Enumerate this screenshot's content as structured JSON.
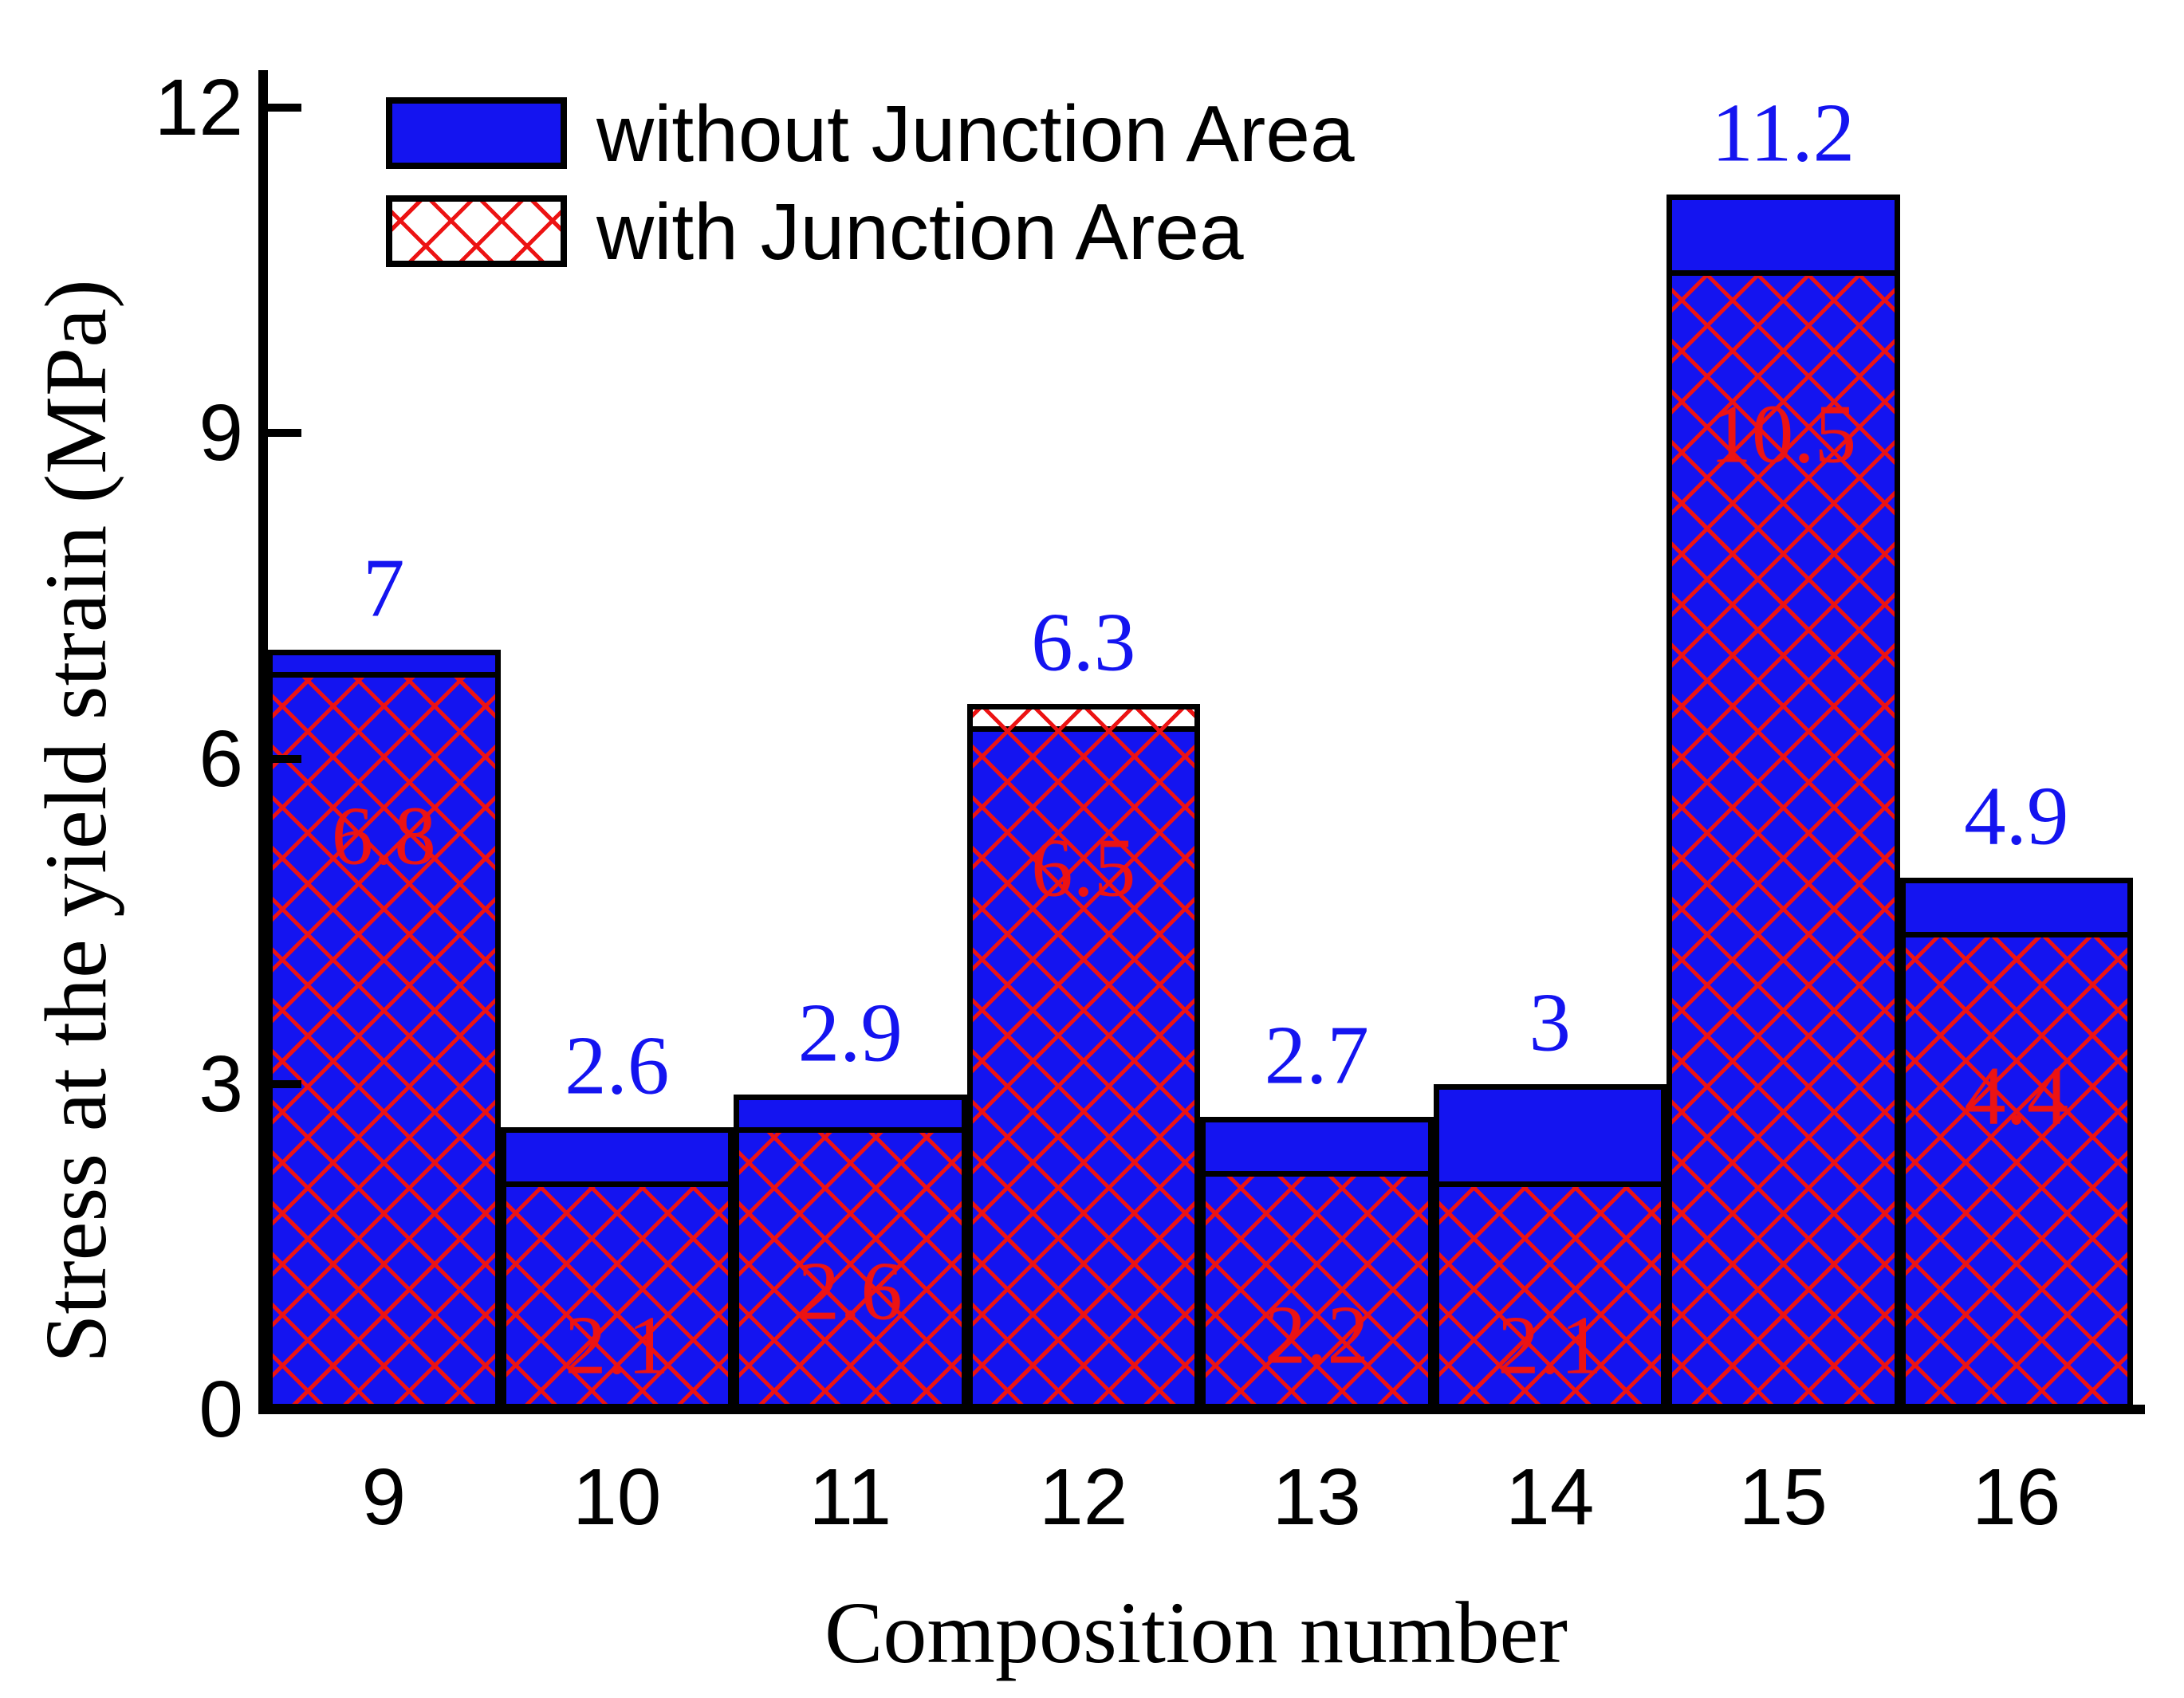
{
  "colors": {
    "bar_blue": "#1414F0",
    "hatch_red": "#EC1313",
    "blue_label": "#1414F0",
    "red_label": "#EC1313",
    "axis_black": "#000000",
    "background": "#FFFFFF"
  },
  "chart_data": {
    "type": "bar",
    "bar_mode": "overlaid",
    "title": "",
    "xlabel": "Composition number",
    "ylabel": "Stress at the yield strain (MPa)",
    "categories": [
      "9",
      "10",
      "11",
      "12",
      "13",
      "14",
      "15",
      "16"
    ],
    "series": [
      {
        "name": "without Junction Area",
        "style": "solid-blue",
        "values": [
          7,
          2.6,
          2.9,
          6.3,
          2.7,
          3,
          11.2,
          4.9
        ],
        "labels": [
          "7",
          "2.6",
          "2.9",
          "6.3",
          "2.7",
          "3",
          "11.2",
          "4.9"
        ]
      },
      {
        "name": "with Junction Area",
        "style": "red-crosshatch-on-white",
        "values": [
          6.8,
          2.1,
          2.6,
          6.5,
          2.2,
          2.1,
          10.5,
          4.4
        ],
        "labels": [
          "6.8",
          "2.1",
          "2.6",
          "6.5",
          "2.2",
          "2.1",
          "10.5",
          "4.4"
        ]
      }
    ],
    "ylim": [
      0,
      12
    ],
    "y_ticks": [
      0,
      3,
      6,
      9,
      12
    ],
    "y_tick_labels": [
      "0",
      "3",
      "6",
      "9",
      "12"
    ],
    "grid": false,
    "legend_position": "top-left"
  }
}
